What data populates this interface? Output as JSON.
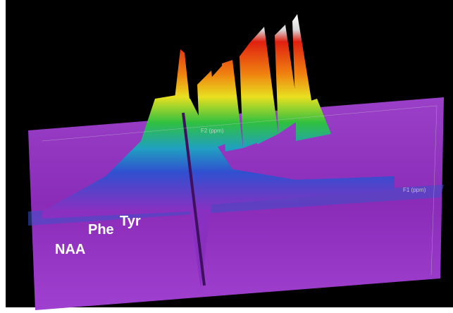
{
  "labels": {
    "naa": "NAA",
    "phe": "Phe",
    "tyr": "Tyr"
  },
  "axis_labels": [
    "F2 (ppm)",
    "F1 (ppm)"
  ]
}
